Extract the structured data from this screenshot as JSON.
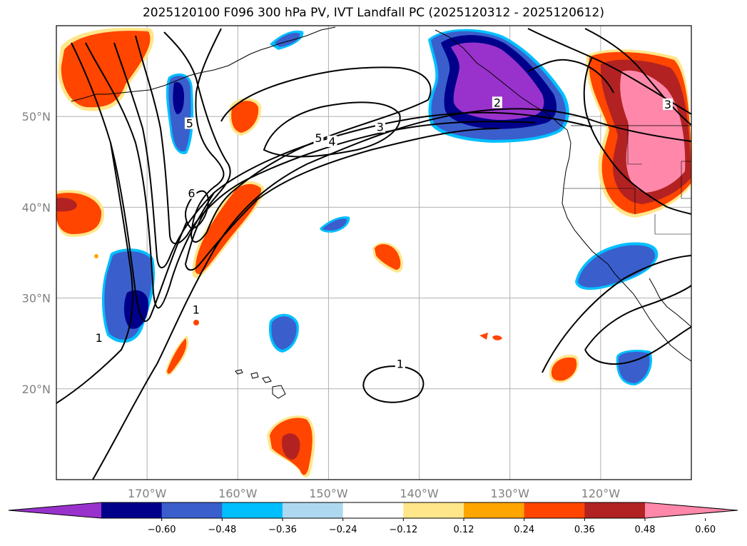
{
  "title": "2025120100 F096 300 hPa PV, IVT Landfall PC (2025120312 - 2025120612)",
  "map": {
    "lat_labels": [
      "50°N",
      "40°N",
      "30°N",
      "20°N"
    ],
    "lat_values": [
      50,
      40,
      30,
      20
    ],
    "lon_labels": [
      "170°W",
      "160°W",
      "150°W",
      "140°W",
      "130°W",
      "120°W"
    ],
    "lon_values": [
      -170,
      -160,
      -150,
      -140,
      -130,
      -120
    ],
    "extent": {
      "lon_min": -180,
      "lon_max": -110,
      "lat_min": 10,
      "lat_max": 60
    },
    "grid": true,
    "contour_labels": [
      {
        "text": "5",
        "lon": -165.3,
        "lat": 49.1
      },
      {
        "text": "6",
        "lon": -165.1,
        "lat": 41.4
      },
      {
        "text": "5",
        "lon": -151.1,
        "lat": 47.5
      },
      {
        "text": "4",
        "lon": -149.6,
        "lat": 47.1
      },
      {
        "text": "3",
        "lon": -144.3,
        "lat": 48.7
      },
      {
        "text": "2",
        "lon": -131.4,
        "lat": 51.4
      },
      {
        "text": "3",
        "lon": -112.6,
        "lat": 51.2
      },
      {
        "text": "1",
        "lon": -164.6,
        "lat": 28.6
      },
      {
        "text": "1",
        "lon": -175.3,
        "lat": 25.5
      },
      {
        "text": "1",
        "lon": -142.1,
        "lat": 22.6
      }
    ]
  },
  "colorbar": {
    "ticks": [
      "−0.60",
      "−0.48",
      "−0.36",
      "−0.24",
      "−0.12",
      "0.12",
      "0.24",
      "0.36",
      "0.48",
      "0.60"
    ],
    "colors": [
      "#9932cc",
      "#00008b",
      "#3a5fcd",
      "#00bfff",
      "#add8f0",
      "#ffffff",
      "#ffe68a",
      "#ffa500",
      "#ff4500",
      "#b22222",
      "#ff88aa"
    ],
    "extend": "both"
  }
}
